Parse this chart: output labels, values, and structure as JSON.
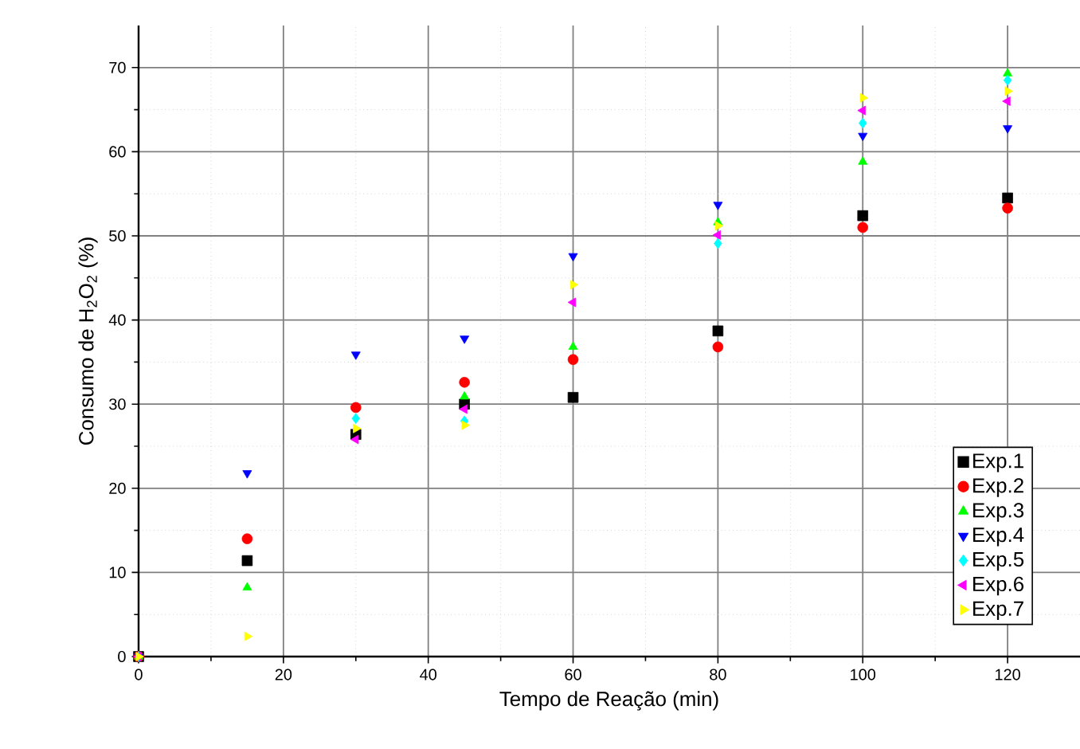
{
  "chart_data": {
    "type": "scatter",
    "xlabel": "Tempo de Reação (min)",
    "ylabel": "Consumo de H$_{2}$O$_{2}$ (%)",
    "x": [
      0,
      15,
      30,
      45,
      60,
      80,
      100,
      120
    ],
    "series": [
      {
        "name": "Exp.1",
        "color": "#000000",
        "marker": "square",
        "values": [
          0,
          11.4,
          26.4,
          30,
          30.8,
          38.7,
          52.4,
          54.5
        ]
      },
      {
        "name": "Exp.2",
        "color": "#ff0000",
        "marker": "circle",
        "values": [
          0,
          14,
          29.6,
          32.6,
          35.3,
          36.8,
          51,
          53.3
        ]
      },
      {
        "name": "Exp.3",
        "color": "#00ff00",
        "marker": "triangle",
        "values": [
          0,
          8.2,
          null,
          30.9,
          36.8,
          51.6,
          58.8,
          69.3
        ]
      },
      {
        "name": "Exp.4",
        "color": "#0000ff",
        "marker": "triangle-down",
        "values": [
          0,
          21.8,
          35.9,
          37.8,
          47.6,
          53.7,
          61.9,
          62.8
        ]
      },
      {
        "name": "Exp.5",
        "color": "#00ffff",
        "marker": "diamond",
        "values": [
          0,
          null,
          28.3,
          28,
          null,
          49.1,
          63.4,
          68.5
        ]
      },
      {
        "name": "Exp.6",
        "color": "#ff00ff",
        "marker": "triangle-left",
        "values": [
          0,
          null,
          25.8,
          29.4,
          42.1,
          50.1,
          64.9,
          66
        ]
      },
      {
        "name": "Exp.7",
        "color": "#ffff00",
        "marker": "triangle-right",
        "values": [
          0,
          2.4,
          27.1,
          27.5,
          44.2,
          51.2,
          66.4,
          67.2
        ]
      }
    ],
    "xlim": [
      0,
      130
    ],
    "ylim": [
      0,
      75
    ],
    "xticks": [
      0,
      20,
      40,
      60,
      80,
      100,
      120
    ],
    "yticks": [
      0,
      10,
      20,
      30,
      40,
      50,
      60,
      70
    ],
    "grid": true,
    "legend": "bottom right"
  }
}
